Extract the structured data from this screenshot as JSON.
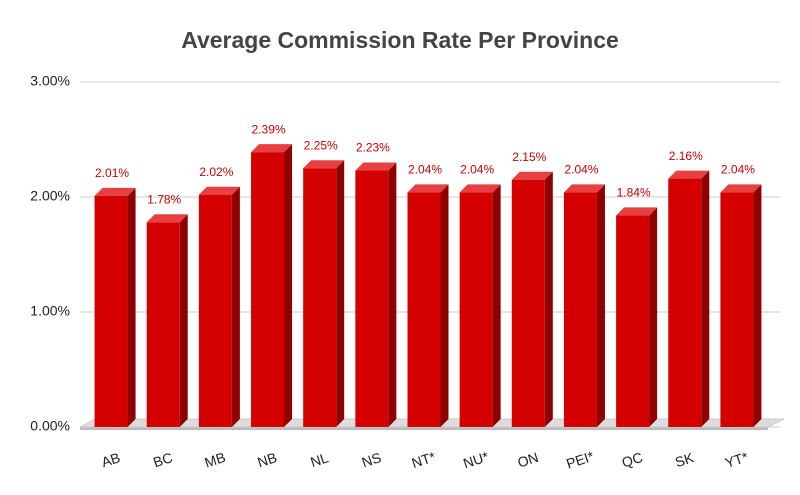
{
  "chart_data": {
    "type": "bar3d",
    "title": "Average Commission Rate Per Province",
    "categories": [
      "AB",
      "BC",
      "MB",
      "NB",
      "NL",
      "NS",
      "NT*",
      "NU*",
      "ON",
      "PEI*",
      "QC",
      "SK",
      "YT*"
    ],
    "values": [
      2.01,
      1.78,
      2.02,
      2.39,
      2.25,
      2.23,
      2.04,
      2.04,
      2.15,
      2.04,
      1.84,
      2.16,
      2.04
    ],
    "value_labels": [
      "2.01%",
      "1.78%",
      "2.02%",
      "2.39%",
      "2.25%",
      "2.23%",
      "2.04%",
      "2.04%",
      "2.15%",
      "2.04%",
      "1.84%",
      "2.16%",
      "2.04%"
    ],
    "color": "#d40000",
    "ylim": [
      0,
      3
    ],
    "yticks": [
      {
        "value": 0,
        "label": "0.00%"
      },
      {
        "value": 1,
        "label": "1.00%"
      },
      {
        "value": 2,
        "label": "2.00%"
      },
      {
        "value": 3,
        "label": "3.00%"
      }
    ],
    "grid": true
  }
}
